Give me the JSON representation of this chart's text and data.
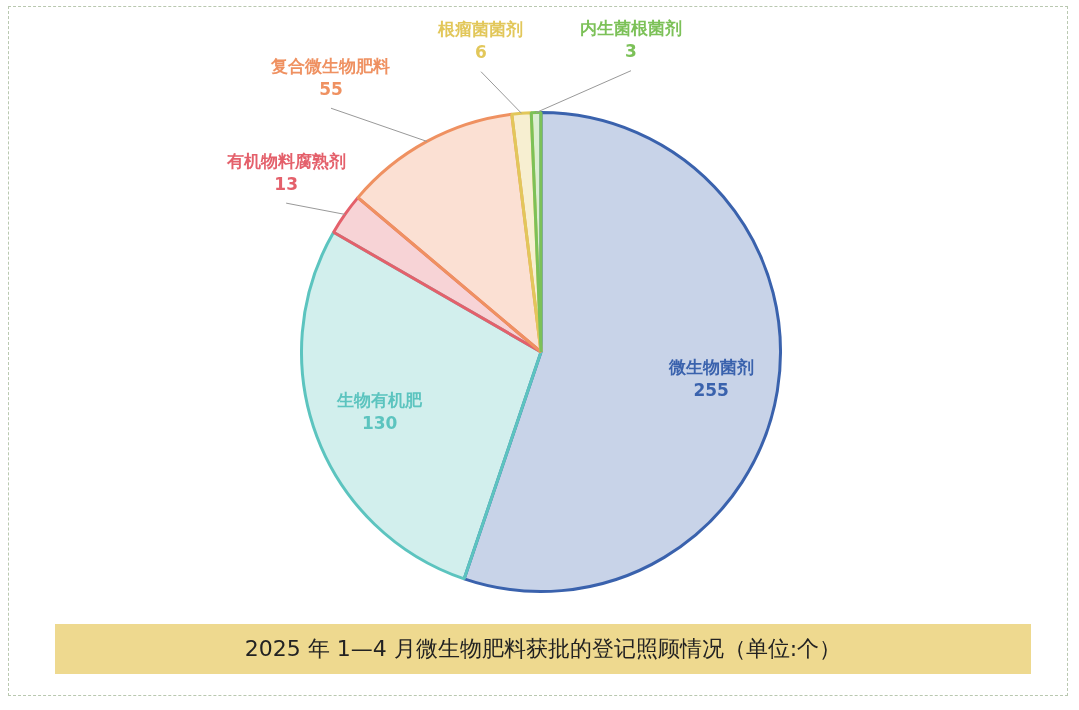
{
  "chart_data": {
    "type": "pie",
    "title": "2025 年 1—4 月微生物肥料获批的登记照顾情况（单位:个）",
    "categories": [
      "微生物菌剂",
      "生物有机肥",
      "有机物料腐熟剂",
      "复合微生物肥料",
      "根瘤菌菌剂",
      "内生菌根菌剂"
    ],
    "values": [
      255,
      130,
      13,
      55,
      6,
      3
    ],
    "colors": [
      "#3a62ad",
      "#5cc4bf",
      "#e4606b",
      "#ef9161",
      "#e2c75a",
      "#7cc158"
    ],
    "data_labels": true,
    "legend": false
  }
}
